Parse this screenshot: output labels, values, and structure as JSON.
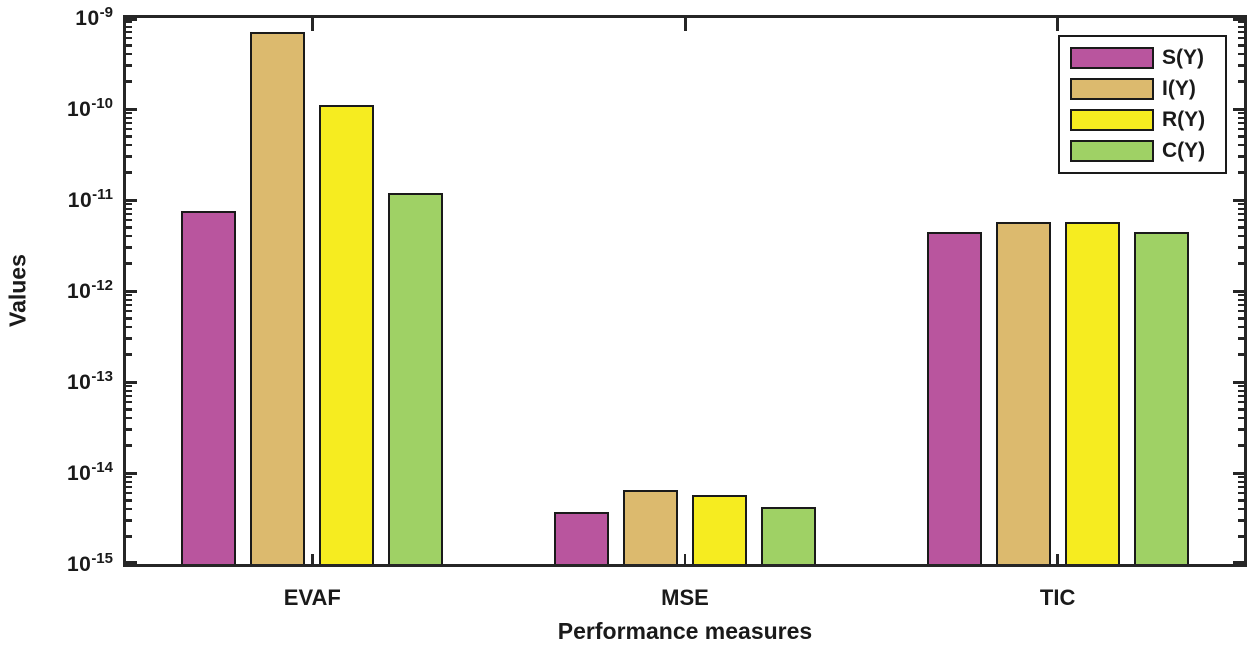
{
  "chart_data": {
    "type": "bar",
    "title": "",
    "xlabel": "Performance measures",
    "ylabel": "Values",
    "yscale": "log",
    "ylim": [
      1e-15,
      1e-09
    ],
    "y_tick_exponents": [
      -9,
      -10,
      -11,
      -12,
      -13,
      -14,
      -15
    ],
    "grid": false,
    "legend_position": "top-right",
    "axis_color": "#262626",
    "text_color": "#1a1a1a",
    "categories": [
      "EVAF",
      "MSE",
      "TIC"
    ],
    "series": [
      {
        "name": "S(Y)",
        "color": "#b9559e",
        "values": [
          7.6e-12,
          3.7e-15,
          4.4e-12
        ]
      },
      {
        "name": "I(Y)",
        "color": "#dcba6e",
        "values": [
          7e-10,
          6.5e-15,
          5.7e-12
        ]
      },
      {
        "name": "R(Y)",
        "color": "#f6ec20",
        "values": [
          1.1e-10,
          5.8e-15,
          5.7e-12
        ]
      },
      {
        "name": "C(Y)",
        "color": "#9fd165",
        "values": [
          1.2e-11,
          4.2e-15,
          4.4e-12
        ]
      }
    ]
  }
}
